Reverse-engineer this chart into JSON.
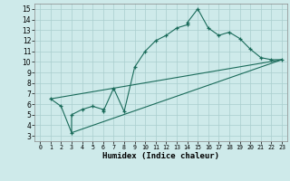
{
  "xlabel": "Humidex (Indice chaleur)",
  "background_color": "#ceeaea",
  "grid_color": "#aacece",
  "line_color": "#1a6b5a",
  "xlim": [
    -0.5,
    23.5
  ],
  "ylim": [
    2.5,
    15.5
  ],
  "xticks": [
    0,
    1,
    2,
    3,
    4,
    5,
    6,
    7,
    8,
    9,
    10,
    11,
    12,
    13,
    14,
    15,
    16,
    17,
    18,
    19,
    20,
    21,
    22,
    23
  ],
  "yticks": [
    3,
    4,
    5,
    6,
    7,
    8,
    9,
    10,
    11,
    12,
    13,
    14,
    15
  ],
  "line1_x": [
    1,
    2,
    3,
    3,
    4,
    5,
    6,
    6,
    7,
    8,
    9,
    10,
    11,
    12,
    13,
    14,
    14,
    15,
    16,
    17,
    18,
    19,
    20,
    21,
    22,
    23
  ],
  "line1_y": [
    6.5,
    5.8,
    3.3,
    5.0,
    5.5,
    5.8,
    5.5,
    5.3,
    7.5,
    5.3,
    9.5,
    11.0,
    12.0,
    12.5,
    13.2,
    13.5,
    13.7,
    15.0,
    13.2,
    12.5,
    12.8,
    12.2,
    11.2,
    10.4,
    10.2,
    10.2
  ],
  "line2_x": [
    1,
    23
  ],
  "line2_y": [
    6.5,
    10.2
  ],
  "line3_x": [
    3,
    23
  ],
  "line3_y": [
    3.3,
    10.2
  ]
}
